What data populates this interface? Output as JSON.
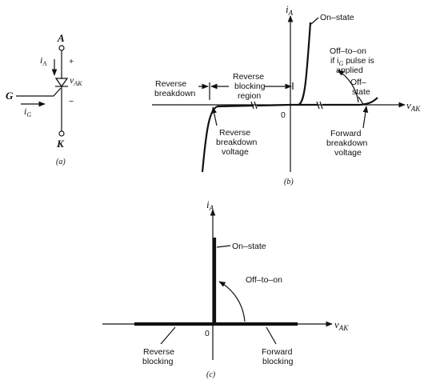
{
  "panel_a": {
    "anode": "A",
    "cathode": "K",
    "gate": "G",
    "current_a_main": "i",
    "current_a_sub": "A",
    "voltage_main": "v",
    "voltage_sub": "AK",
    "current_g_main": "i",
    "current_g_sub": "G",
    "plus": "+",
    "minus": "−",
    "caption": "(a)"
  },
  "panel_b": {
    "y_axis_main": "i",
    "y_axis_sub": "A",
    "x_axis_main": "v",
    "x_axis_sub": "AK",
    "origin": "0",
    "on_state": "On–state",
    "off_to_on": [
      "Off–to–on",
      "if i",
      "G",
      " pulse is",
      "applied"
    ],
    "off_state": [
      "Off–",
      "state"
    ],
    "reverse_breakdown": [
      "Reverse",
      "breakdown"
    ],
    "reverse_blocking_region": [
      "Reverse",
      "blocking",
      "region"
    ],
    "reverse_breakdown_voltage": [
      "Reverse",
      "breakdown",
      "voltage"
    ],
    "forward_breakdown_voltage": [
      "Forward",
      "breakdown",
      "voltage"
    ],
    "caption": "(b)"
  },
  "panel_c": {
    "y_axis_main": "i",
    "y_axis_sub": "A",
    "x_axis_main": "v",
    "x_axis_sub": "AK",
    "origin": "0",
    "on_state": "On–state",
    "off_to_on": "Off–to–on",
    "reverse_blocking": [
      "Reverse",
      "blocking"
    ],
    "forward_blocking": [
      "Forward",
      "blocking"
    ],
    "caption": "(c)"
  }
}
